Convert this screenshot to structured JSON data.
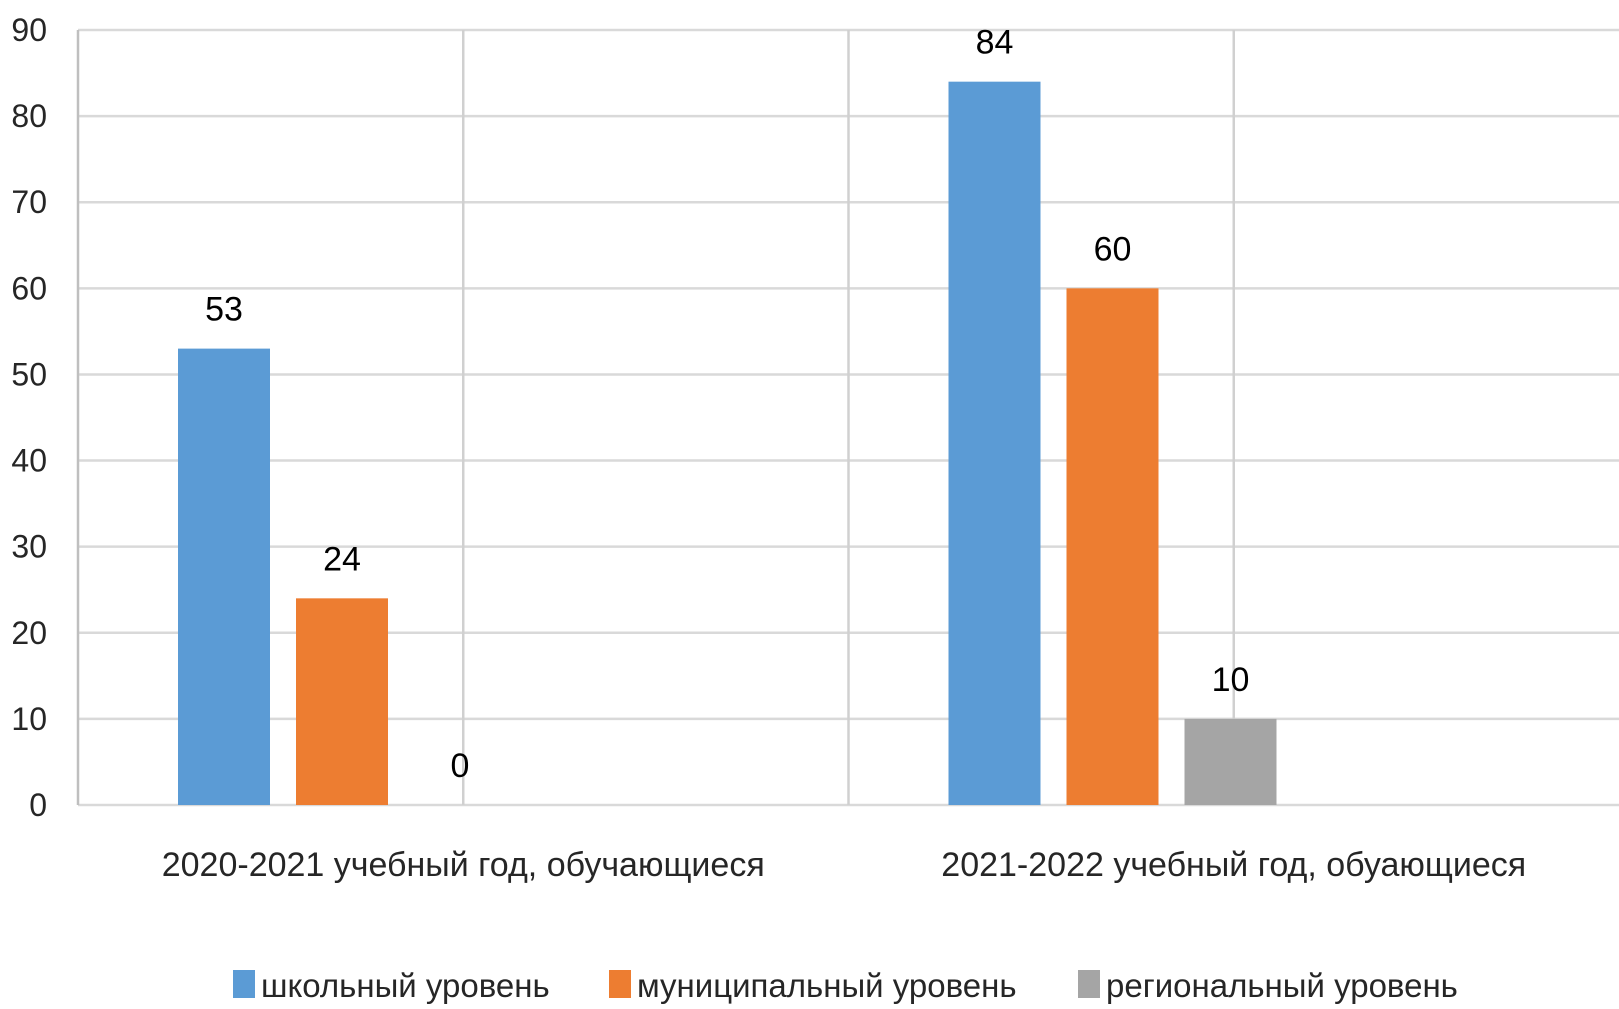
{
  "chart_data": {
    "type": "bar",
    "title": "",
    "xlabel": "",
    "ylabel": "",
    "categories": [
      "2020-2021 учебный год, обучающиеся",
      "2021-2022 учебный год, обуающиеся"
    ],
    "series": [
      {
        "name": "школьный уровень",
        "color": "#5B9BD5",
        "values": [
          53,
          84
        ]
      },
      {
        "name": "муниципальный уровень",
        "color": "#ED7D31",
        "values": [
          24,
          60
        ]
      },
      {
        "name": "региональный уровень",
        "color": "#A5A5A5",
        "values": [
          0,
          10
        ]
      }
    ],
    "ylim": [
      0,
      90
    ],
    "yticks": [
      0,
      10,
      20,
      30,
      40,
      50,
      60,
      70,
      80,
      90
    ],
    "grid": true,
    "legend": "bottom"
  }
}
